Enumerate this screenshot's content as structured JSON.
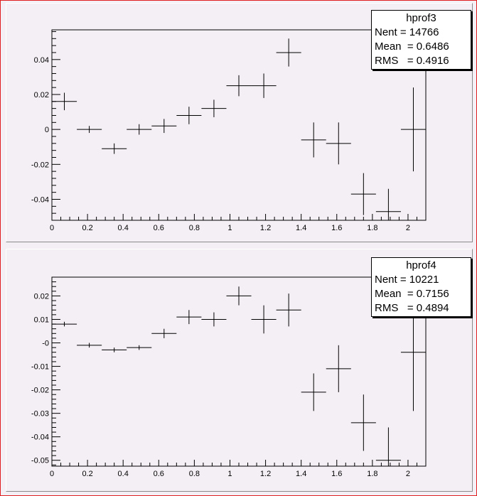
{
  "colors": {
    "canvas_bg": "#f4eff4",
    "frame": "#e02020",
    "plot_frame": "#000000",
    "stats_bg": "#ffffff"
  },
  "chart_data": [
    {
      "type": "scatter",
      "title": "",
      "xlabel": "",
      "ylabel": "",
      "xlim": [
        0,
        2.1
      ],
      "ylim": [
        -0.052,
        0.057
      ],
      "x_ticks": [
        0,
        0.2,
        0.4,
        0.6,
        0.8,
        1,
        1.2,
        1.4,
        1.6,
        1.8,
        2
      ],
      "x_tick_labels": [
        "0",
        "0.2",
        "0.4",
        "0.6",
        "0.8",
        "1",
        "1.2",
        "1.4",
        "1.6",
        "1.8",
        "2"
      ],
      "y_ticks": [
        -0.04,
        -0.02,
        0,
        0.02,
        0.04
      ],
      "y_tick_labels": [
        "-0.04",
        "-0.02",
        "0",
        "0.02",
        "0.04"
      ],
      "grid": false,
      "legend": "top-right",
      "bin_width": 0.14,
      "series": [
        {
          "x": [
            0.07,
            0.21,
            0.35,
            0.49,
            0.63,
            0.77,
            0.91,
            1.05,
            1.19,
            1.33,
            1.47,
            1.61,
            1.75,
            1.89,
            2.03
          ],
          "y": [
            0.016,
            0.0,
            -0.011,
            0.0,
            0.002,
            0.008,
            0.012,
            0.025,
            0.025,
            0.044,
            -0.006,
            -0.008,
            -0.037,
            -0.047,
            0.0
          ],
          "yerr": [
            0.005,
            0.002,
            0.003,
            0.003,
            0.004,
            0.005,
            0.005,
            0.006,
            0.007,
            0.008,
            0.01,
            0.012,
            0.012,
            0.013,
            0.024
          ]
        }
      ],
      "stats": {
        "name": "hprof3",
        "rows": [
          {
            "label": "Nent",
            "value": "14766",
            "text": "Nent = 14766"
          },
          {
            "label": "Mean",
            "value": "0.6486",
            "text": "Mean  = 0.6486"
          },
          {
            "label": "RMS",
            "value": "0.4916",
            "text": "RMS   = 0.4916"
          }
        ]
      }
    },
    {
      "type": "scatter",
      "title": "",
      "xlabel": "",
      "ylabel": "",
      "xlim": [
        0,
        2.1
      ],
      "ylim": [
        -0.0525,
        0.028
      ],
      "x_ticks": [
        0,
        0.2,
        0.4,
        0.6,
        0.8,
        1,
        1.2,
        1.4,
        1.6,
        1.8,
        2
      ],
      "x_tick_labels": [
        "0",
        "0.2",
        "0.4",
        "0.6",
        "0.8",
        "1",
        "1.2",
        "1.4",
        "1.6",
        "1.8",
        "2"
      ],
      "y_ticks": [
        -0.05,
        -0.04,
        -0.03,
        -0.02,
        -0.01,
        0,
        0.01,
        0.02
      ],
      "y_tick_labels": [
        "-0.05",
        "-0.04",
        "-0.03",
        "-0.02",
        "-0.01",
        "-0",
        "0.01",
        "0.02"
      ],
      "grid": false,
      "legend": "top-right",
      "bin_width": 0.14,
      "series": [
        {
          "x": [
            0.07,
            0.21,
            0.35,
            0.49,
            0.63,
            0.77,
            0.91,
            1.05,
            1.19,
            1.33,
            1.47,
            1.61,
            1.75,
            1.89,
            2.03
          ],
          "y": [
            0.008,
            -0.001,
            -0.003,
            -0.002,
            0.004,
            0.011,
            0.01,
            0.02,
            0.01,
            0.014,
            -0.021,
            -0.011,
            -0.034,
            -0.05,
            -0.004
          ],
          "yerr": [
            0.001,
            0.001,
            0.001,
            0.001,
            0.002,
            0.003,
            0.003,
            0.004,
            0.006,
            0.007,
            0.008,
            0.01,
            0.012,
            0.014,
            0.025
          ]
        }
      ],
      "stats": {
        "name": "hprof4",
        "rows": [
          {
            "label": "Nent",
            "value": "10221",
            "text": "Nent = 10221"
          },
          {
            "label": "Mean",
            "value": "0.7156",
            "text": "Mean  = 0.7156"
          },
          {
            "label": "RMS",
            "value": "0.4894",
            "text": "RMS   = 0.4894"
          }
        ]
      }
    }
  ]
}
